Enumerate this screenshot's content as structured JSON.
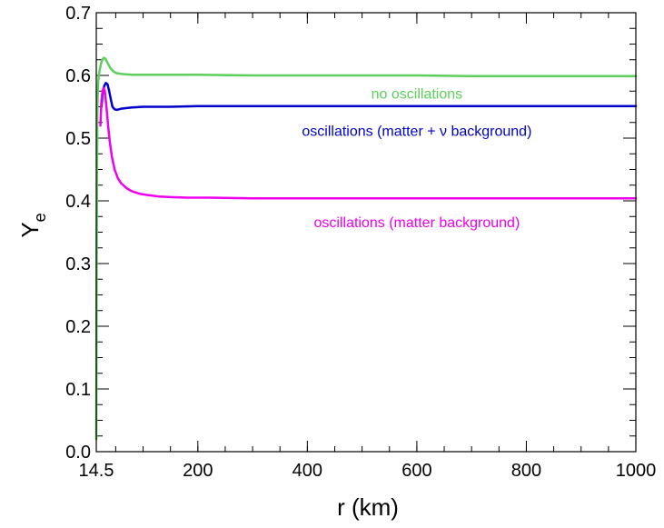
{
  "chart_data": {
    "type": "line",
    "xlabel": "r (km)",
    "ylabel": "Y",
    "ylabel_subscript": "e",
    "xlim": [
      14.5,
      1000
    ],
    "ylim": [
      0.0,
      0.7
    ],
    "x_ticks": [
      {
        "value": 14.5,
        "label": "14.5"
      },
      {
        "value": 200,
        "label": "200"
      },
      {
        "value": 400,
        "label": "400"
      },
      {
        "value": 600,
        "label": "600"
      },
      {
        "value": 800,
        "label": "800"
      },
      {
        "value": 1000,
        "label": "1000"
      }
    ],
    "y_ticks": [
      {
        "value": 0.0,
        "label": "0.0"
      },
      {
        "value": 0.1,
        "label": "0.1"
      },
      {
        "value": 0.2,
        "label": "0.2"
      },
      {
        "value": 0.3,
        "label": "0.3"
      },
      {
        "value": 0.4,
        "label": "0.4"
      },
      {
        "value": 0.5,
        "label": "0.5"
      },
      {
        "value": 0.6,
        "label": "0.6"
      },
      {
        "value": 0.7,
        "label": "0.7"
      }
    ],
    "x_minor_step": 50,
    "y_minor_step": 0.025,
    "grid": false,
    "series": [
      {
        "name": "no oscillations",
        "color": "#5ccf5c",
        "label_anchor": {
          "x": 600,
          "y": 0.572
        },
        "x": [
          14.5,
          15.2,
          16.5,
          18,
          20,
          21.5,
          23,
          25,
          28,
          31,
          35,
          40,
          45,
          50,
          55,
          65,
          80,
          100,
          150,
          200,
          300,
          400,
          500,
          600,
          700,
          800,
          900,
          1000
        ],
        "y": [
          0.02,
          0.3,
          0.55,
          0.59,
          0.605,
          0.612,
          0.618,
          0.624,
          0.628,
          0.627,
          0.62,
          0.612,
          0.607,
          0.604,
          0.603,
          0.602,
          0.601,
          0.601,
          0.601,
          0.601,
          0.6,
          0.6,
          0.6,
          0.6,
          0.599,
          0.599,
          0.599,
          0.599
        ]
      },
      {
        "name": "oscillations (matter + ν background)",
        "color": "#0000cc",
        "label_anchor": {
          "x": 600,
          "y": 0.512
        },
        "x": [
          24,
          26,
          29,
          32,
          35,
          38,
          41,
          44,
          48,
          52,
          56,
          60,
          70,
          80,
          100,
          150,
          200,
          300,
          400,
          500,
          600,
          700,
          800,
          900,
          1000
        ],
        "y": [
          0.55,
          0.57,
          0.583,
          0.588,
          0.586,
          0.575,
          0.562,
          0.55,
          0.546,
          0.545,
          0.546,
          0.547,
          0.548,
          0.549,
          0.55,
          0.55,
          0.551,
          0.551,
          0.551,
          0.551,
          0.551,
          0.551,
          0.551,
          0.551,
          0.551
        ]
      },
      {
        "name": "oscillations (matter background)",
        "color": "#ee00ee",
        "label_anchor": {
          "x": 600,
          "y": 0.367
        },
        "x": [
          22,
          24,
          26,
          28,
          30,
          32,
          34,
          36,
          39,
          43,
          48,
          54,
          60,
          70,
          80,
          95,
          110,
          130,
          150,
          180,
          220,
          300,
          400,
          500,
          600,
          700,
          800,
          900,
          1000
        ],
        "y": [
          0.52,
          0.56,
          0.575,
          0.58,
          0.576,
          0.56,
          0.54,
          0.52,
          0.495,
          0.47,
          0.45,
          0.436,
          0.428,
          0.42,
          0.415,
          0.411,
          0.409,
          0.407,
          0.406,
          0.405,
          0.405,
          0.404,
          0.404,
          0.404,
          0.404,
          0.404,
          0.404,
          0.404,
          0.404
        ]
      }
    ]
  }
}
